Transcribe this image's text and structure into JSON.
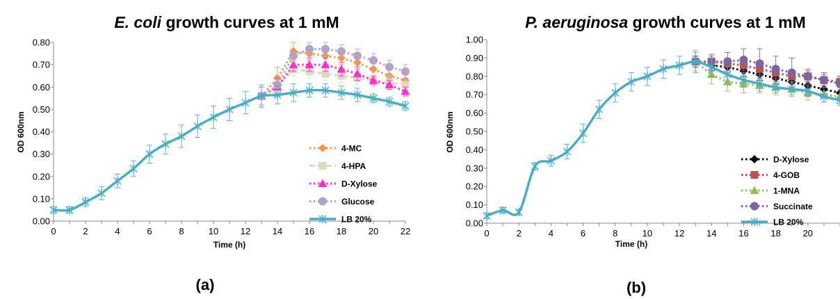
{
  "chart_data": [
    {
      "type": "line",
      "panel_label": "(a)",
      "title_italic": "E. coli",
      "title_rest": " growth curves at 1 mM",
      "xlabel": "Time (h)",
      "ylabel": "OD 600nm",
      "xlim": [
        0,
        22
      ],
      "ylim": [
        0,
        0.8
      ],
      "xticks": [
        "0",
        "2",
        "4",
        "6",
        "8",
        "10",
        "12",
        "14",
        "16",
        "18",
        "20",
        "22"
      ],
      "yticks": [
        "0.00",
        "0.10",
        "0.20",
        "0.30",
        "0.40",
        "0.50",
        "0.60",
        "0.70",
        "0.80"
      ],
      "legend_position": "right",
      "series": [
        {
          "name": "4-MC",
          "color": "#F79646",
          "marker": "diamond",
          "dash": "dot",
          "x": [
            13,
            14,
            15,
            16,
            17,
            18,
            19,
            20,
            21,
            22
          ],
          "y": [
            0.56,
            0.64,
            0.76,
            0.75,
            0.74,
            0.73,
            0.71,
            0.68,
            0.65,
            0.63
          ],
          "err": [
            0.05,
            0.05,
            0.04,
            0.03,
            0.03,
            0.03,
            0.03,
            0.03,
            0.03,
            0.03
          ]
        },
        {
          "name": "4-HPA",
          "color": "#DDD9C3",
          "marker": "square",
          "dash": "dash",
          "x": [
            13,
            14,
            15,
            16,
            17,
            18,
            19,
            20,
            21,
            22
          ],
          "y": [
            0.56,
            0.6,
            0.68,
            0.67,
            0.66,
            0.65,
            0.64,
            0.63,
            0.62,
            0.61
          ],
          "err": [
            0.04,
            0.03,
            0.03,
            0.03,
            0.03,
            0.03,
            0.03,
            0.03,
            0.03,
            0.03
          ]
        },
        {
          "name": "D-Xylose",
          "color": "#FF33CC",
          "marker": "triangle",
          "dash": "dot",
          "x": [
            13,
            14,
            15,
            16,
            17,
            18,
            19,
            20,
            21,
            22
          ],
          "y": [
            0.56,
            0.6,
            0.7,
            0.7,
            0.7,
            0.68,
            0.66,
            0.63,
            0.61,
            0.58
          ],
          "err": [
            0.04,
            0.04,
            0.03,
            0.03,
            0.03,
            0.03,
            0.03,
            0.02,
            0.02,
            0.02
          ]
        },
        {
          "name": "Glucose",
          "color": "#B3A2C7",
          "marker": "circle",
          "dash": "dot",
          "x": [
            13,
            14,
            15,
            16,
            17,
            18,
            19,
            20,
            21,
            22
          ],
          "y": [
            0.56,
            0.61,
            0.74,
            0.77,
            0.77,
            0.76,
            0.74,
            0.72,
            0.69,
            0.67
          ],
          "err": [
            0.04,
            0.04,
            0.03,
            0.03,
            0.03,
            0.03,
            0.03,
            0.03,
            0.03,
            0.03
          ]
        },
        {
          "name": "LB 20%",
          "color": "#4BACC6",
          "marker": "star",
          "dash": "solid",
          "x": [
            0,
            1,
            2,
            3,
            4,
            5,
            6,
            7,
            8,
            9,
            10,
            11,
            12,
            13,
            14,
            15,
            16,
            17,
            18,
            19,
            20,
            21,
            22
          ],
          "y": [
            0.05,
            0.05,
            0.085,
            0.125,
            0.18,
            0.235,
            0.3,
            0.345,
            0.38,
            0.425,
            0.465,
            0.5,
            0.53,
            0.56,
            0.565,
            0.575,
            0.585,
            0.585,
            0.575,
            0.565,
            0.55,
            0.535,
            0.515
          ],
          "err": [
            0.015,
            0.015,
            0.02,
            0.03,
            0.03,
            0.035,
            0.04,
            0.045,
            0.05,
            0.05,
            0.05,
            0.05,
            0.05,
            0.05,
            0.04,
            0.04,
            0.03,
            0.03,
            0.03,
            0.03,
            0.02,
            0.02,
            0.02
          ]
        }
      ]
    },
    {
      "type": "line",
      "panel_label": "(b)",
      "title_italic": "P. aeruginosa",
      "title_rest": " growth curves at 1 mM",
      "xlabel": "Time (h)",
      "ylabel": "OD 600nm",
      "xlim": [
        0,
        22
      ],
      "ylim": [
        0,
        1.0
      ],
      "xticks": [
        "0",
        "2",
        "4",
        "6",
        "8",
        "10",
        "12",
        "14",
        "16",
        "18",
        "20"
      ],
      "yticks": [
        "0.00",
        "0.10",
        "0.20",
        "0.30",
        "0.40",
        "0.50",
        "0.60",
        "0.70",
        "0.80",
        "0.90",
        "1.00"
      ],
      "legend_position": "right",
      "series": [
        {
          "name": "D-Xylose",
          "color": "#000000",
          "marker": "diamond",
          "dash": "dot",
          "x": [
            13,
            14,
            15,
            16,
            17,
            18,
            19,
            20,
            21,
            22
          ],
          "y": [
            0.88,
            0.86,
            0.85,
            0.83,
            0.81,
            0.79,
            0.77,
            0.75,
            0.73,
            0.71
          ],
          "err": [
            0.03,
            0.03,
            0.03,
            0.03,
            0.03,
            0.03,
            0.03,
            0.03,
            0.03,
            0.03
          ]
        },
        {
          "name": "4-GOB",
          "color": "#C0504D",
          "marker": "square",
          "dash": "dot",
          "x": [
            13,
            14,
            15,
            16,
            17,
            18,
            19,
            20,
            21,
            22
          ],
          "y": [
            0.88,
            0.88,
            0.87,
            0.86,
            0.84,
            0.82,
            0.8,
            0.8,
            0.78,
            0.77
          ],
          "err": [
            0.03,
            0.03,
            0.03,
            0.03,
            0.03,
            0.03,
            0.03,
            0.03,
            0.03,
            0.03
          ]
        },
        {
          "name": "1-MNA",
          "color": "#9BBB59",
          "marker": "triangle",
          "dash": "dot",
          "x": [
            13,
            14,
            15,
            16,
            17,
            18,
            19,
            20,
            21,
            22
          ],
          "y": [
            0.88,
            0.81,
            0.77,
            0.76,
            0.75,
            0.74,
            0.73,
            0.71,
            0.7,
            0.69
          ],
          "err": [
            0.05,
            0.05,
            0.05,
            0.05,
            0.04,
            0.04,
            0.04,
            0.04,
            0.04,
            0.04
          ]
        },
        {
          "name": "Succinate",
          "color": "#8064A2",
          "marker": "circle",
          "dash": "dot",
          "x": [
            13,
            14,
            15,
            16,
            17,
            18,
            19,
            20,
            21,
            22
          ],
          "y": [
            0.88,
            0.88,
            0.88,
            0.89,
            0.87,
            0.84,
            0.82,
            0.8,
            0.78,
            0.76
          ],
          "err": [
            0.03,
            0.04,
            0.05,
            0.06,
            0.08,
            0.07,
            0.08,
            0.04,
            0.04,
            0.04
          ]
        },
        {
          "name": "LB 20%",
          "color": "#4BACC6",
          "marker": "star",
          "dash": "solid",
          "x": [
            0,
            1,
            2,
            3,
            4,
            5,
            6,
            7,
            8,
            9,
            10,
            11,
            12,
            13,
            14,
            15,
            16,
            17,
            18,
            19,
            20,
            21,
            22
          ],
          "y": [
            0.04,
            0.07,
            0.06,
            0.31,
            0.34,
            0.39,
            0.49,
            0.62,
            0.71,
            0.77,
            0.8,
            0.84,
            0.86,
            0.88,
            0.85,
            0.81,
            0.78,
            0.76,
            0.74,
            0.73,
            0.72,
            0.69,
            0.67
          ],
          "err": [
            0.015,
            0.015,
            0.015,
            0.02,
            0.03,
            0.04,
            0.05,
            0.05,
            0.05,
            0.05,
            0.05,
            0.05,
            0.05,
            0.06,
            0.05,
            0.04,
            0.04,
            0.04,
            0.03,
            0.03,
            0.03,
            0.03,
            0.03
          ]
        }
      ]
    }
  ]
}
